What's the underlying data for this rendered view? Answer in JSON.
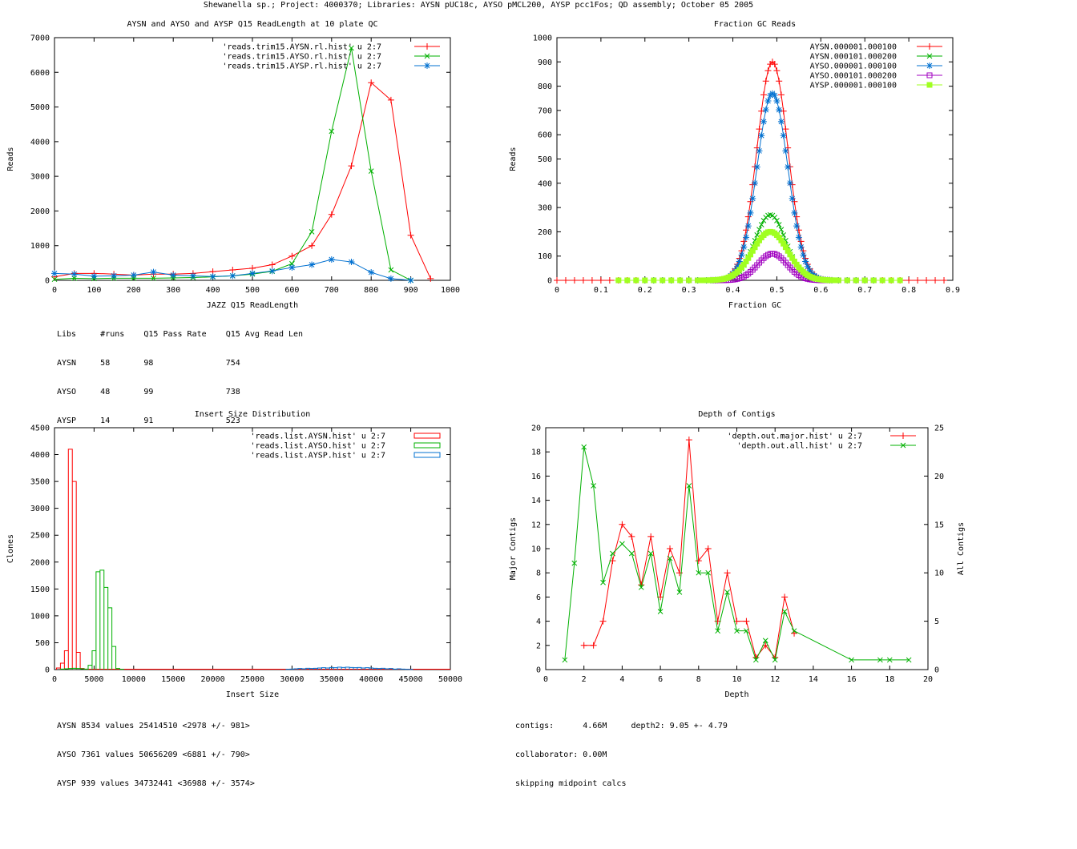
{
  "page_title": "Shewanella sp.; Project: 4000370; Libraries: AYSN pUC18c, AYSO pMCL200, AYSP pcc1Fos; QD assembly; October 05 2005",
  "chart_data": [
    {
      "id": "readlength",
      "type": "line",
      "title": "AYSN and AYSO and AYSP Q15 ReadLength at 10 plate QC",
      "xlabel": "JAZZ Q15 ReadLength",
      "ylabel": "Reads",
      "xlim": [
        0,
        1000
      ],
      "ylim": [
        0,
        7000
      ],
      "xticks": [
        0,
        100,
        200,
        300,
        400,
        500,
        600,
        700,
        800,
        900,
        1000
      ],
      "yticks": [
        0,
        1000,
        2000,
        3000,
        4000,
        5000,
        6000,
        7000
      ],
      "legend": "top-right",
      "series": [
        {
          "name": "'reads.trim15.AYSN.rl.hist' u 2:7",
          "color": "#ff0000",
          "marker": "plus",
          "x": [
            0,
            50,
            100,
            150,
            200,
            250,
            300,
            350,
            400,
            450,
            500,
            550,
            600,
            650,
            700,
            750,
            800,
            850,
            900,
            950
          ],
          "y": [
            100,
            200,
            200,
            180,
            150,
            180,
            180,
            200,
            250,
            300,
            350,
            450,
            700,
            1000,
            1900,
            3300,
            5700,
            5200,
            1300,
            50
          ]
        },
        {
          "name": "'reads.trim15.AYSO.rl.hist' u 2:7",
          "color": "#00b000",
          "marker": "x",
          "x": [
            0,
            50,
            100,
            150,
            200,
            250,
            300,
            350,
            400,
            450,
            500,
            550,
            600,
            650,
            700,
            750,
            800,
            850,
            900
          ],
          "y": [
            30,
            60,
            50,
            60,
            60,
            60,
            70,
            80,
            100,
            130,
            180,
            260,
            480,
            1400,
            4300,
            6700,
            3150,
            300,
            0
          ]
        },
        {
          "name": "'reads.trim15.AYSP.rl.hist' u 2:7",
          "color": "#0070d0",
          "marker": "star",
          "x": [
            0,
            50,
            100,
            150,
            200,
            250,
            300,
            350,
            400,
            450,
            500,
            550,
            600,
            650,
            700,
            750,
            800,
            850,
            900
          ],
          "y": [
            200,
            180,
            120,
            130,
            150,
            240,
            150,
            130,
            110,
            130,
            200,
            270,
            370,
            450,
            600,
            530,
            230,
            50,
            0
          ]
        }
      ]
    },
    {
      "id": "gc",
      "type": "line",
      "title": "Fraction GC Reads",
      "xlabel": "Fraction GC",
      "ylabel": "Reads",
      "xlim": [
        0,
        0.9
      ],
      "ylim": [
        0,
        1000
      ],
      "xticks": [
        0,
        0.1,
        0.2,
        0.3,
        0.4,
        0.5,
        0.6,
        0.7,
        0.8,
        0.9
      ],
      "yticks": [
        0,
        100,
        200,
        300,
        400,
        500,
        600,
        700,
        800,
        900,
        1000
      ],
      "legend": "top-right",
      "series": [
        {
          "name": "AYSN.000001.000100",
          "color": "#ff0000",
          "marker": "plus",
          "peak": 900,
          "peak_x": 0.49,
          "width": 0.035,
          "min_x": 0.0,
          "max_x": 0.88
        },
        {
          "name": "AYSN.000101.000200",
          "color": "#00b000",
          "marker": "x",
          "peak": 270,
          "peak_x": 0.485,
          "width": 0.035,
          "min_x": 0.2,
          "max_x": 0.75
        },
        {
          "name": "AYSO.000001.000100",
          "color": "#0070d0",
          "marker": "star",
          "peak": 770,
          "peak_x": 0.49,
          "width": 0.035,
          "min_x": 0.2,
          "max_x": 0.72
        },
        {
          "name": "AYSO.000101.000200",
          "color": "#a000c0",
          "marker": "box",
          "peak": 110,
          "peak_x": 0.49,
          "width": 0.033,
          "min_x": 0.3,
          "max_x": 0.72
        },
        {
          "name": "AYSP.000001.000100",
          "color": "#a0ff20",
          "marker": "filledbox",
          "peak": 200,
          "peak_x": 0.485,
          "width": 0.04,
          "min_x": 0.13,
          "max_x": 0.78
        }
      ]
    },
    {
      "id": "insert",
      "type": "bar",
      "title": "Insert Size Distribution",
      "xlabel": "Insert Size",
      "ylabel": "Clones",
      "xlim": [
        0,
        50000
      ],
      "ylim": [
        0,
        4500
      ],
      "xticks": [
        0,
        5000,
        10000,
        15000,
        20000,
        25000,
        30000,
        35000,
        40000,
        45000,
        50000
      ],
      "yticks": [
        0,
        500,
        1000,
        1500,
        2000,
        2500,
        3000,
        3500,
        4000,
        4500
      ],
      "legend": "top-right",
      "bin_width": 500,
      "series": [
        {
          "name": "'reads.list.AYSN.hist' u 2:7",
          "color": "#ff0000",
          "x": [
            500,
            1000,
            1500,
            2000,
            2500,
            3000,
            3500
          ],
          "y": [
            30,
            120,
            350,
            4100,
            3500,
            320,
            20
          ],
          "flat_to": 50000
        },
        {
          "name": "'reads.list.AYSO.hist' u 2:7",
          "color": "#00b000",
          "x": [
            1000,
            1500,
            2000,
            2500,
            3000,
            3500,
            4000,
            4500,
            5000,
            5500,
            6000,
            6500,
            7000,
            7500,
            8000,
            8500
          ],
          "y": [
            10,
            15,
            20,
            25,
            20,
            15,
            10,
            80,
            350,
            1820,
            1850,
            1530,
            1150,
            430,
            20,
            5
          ]
        },
        {
          "name": "'reads.list.AYSP.hist' u 2:7",
          "color": "#0070d0",
          "x": [
            29500,
            30000,
            30500,
            31000,
            31500,
            32000,
            32500,
            33000,
            33500,
            34000,
            34500,
            35000,
            35500,
            36000,
            36500,
            37000,
            37500,
            38000,
            38500,
            39000,
            39500,
            40000,
            40500,
            41000,
            41500,
            42000,
            42500,
            43000,
            43500,
            44000,
            44500,
            45000
          ],
          "y": [
            5,
            10,
            15,
            20,
            15,
            25,
            20,
            25,
            30,
            35,
            30,
            40,
            35,
            45,
            40,
            45,
            40,
            35,
            40,
            30,
            35,
            30,
            25,
            20,
            25,
            15,
            20,
            10,
            15,
            10,
            5,
            3
          ]
        }
      ]
    },
    {
      "id": "depth",
      "type": "line",
      "title": "Depth of Contigs",
      "xlabel": "Depth",
      "ylabel": "Major Contigs",
      "y2label": "All Contigs",
      "xlim": [
        0,
        20
      ],
      "ylim": [
        0,
        20
      ],
      "y2lim": [
        0,
        25
      ],
      "xticks": [
        0,
        2,
        4,
        6,
        8,
        10,
        12,
        14,
        16,
        18,
        20
      ],
      "yticks": [
        0,
        2,
        4,
        6,
        8,
        10,
        12,
        14,
        16,
        18,
        20
      ],
      "y2ticks": [
        0,
        5,
        10,
        15,
        20,
        25
      ],
      "legend": "top-right",
      "series": [
        {
          "name": "'depth.out.major.hist' u 2:7",
          "color": "#ff0000",
          "marker": "plus",
          "axis": "y",
          "x": [
            2,
            2.5,
            3,
            3.5,
            4,
            4.5,
            5,
            5.5,
            6,
            6.5,
            7,
            7.5,
            8,
            8.5,
            9,
            9.5,
            10,
            10.5,
            11,
            11.5,
            12,
            12.5,
            13
          ],
          "y": [
            2,
            2,
            4,
            9,
            12,
            11,
            7,
            11,
            6,
            10,
            8,
            19,
            9,
            10,
            4,
            8,
            4,
            4,
            1,
            2,
            1,
            6,
            3
          ]
        },
        {
          "name": "'depth.out.all.hist' u 2:7",
          "color": "#00b000",
          "marker": "x",
          "axis": "y2",
          "x": [
            1,
            1.5,
            2,
            2.5,
            3,
            3.5,
            4,
            4.5,
            5,
            5.5,
            6,
            6.5,
            7,
            7.5,
            8,
            8.5,
            9,
            9.5,
            10,
            10.5,
            11,
            11.5,
            12,
            12.5,
            13,
            16,
            17.5,
            18,
            19
          ],
          "y": [
            1,
            11,
            23,
            19,
            9,
            12,
            13,
            12,
            8.5,
            12,
            6,
            11.5,
            8,
            19,
            10,
            10,
            4,
            8,
            4,
            4,
            1,
            3,
            1,
            6,
            4,
            1,
            1,
            1,
            1
          ]
        }
      ]
    }
  ],
  "readlength_table": {
    "header": "Libs     #runs    Q15 Pass Rate    Q15 Avg Read Len",
    "rows": [
      "AYSN     58       98               754",
      "AYSO     48       99               738",
      "AYSP     14       91               523"
    ]
  },
  "insert_stats": [
    "AYSN 8534 values 25414510 <2978 +/- 981>",
    "AYSO 7361 values 50656209 <6881 +/- 790>",
    "AYSP 939 values 34732441 <36988 +/- 3574>"
  ],
  "depth_stats": [
    "contigs:      4.66M     depth2: 9.05 +- 4.79",
    "collaborator: 0.00M",
    "skipping midpoint calcs"
  ]
}
